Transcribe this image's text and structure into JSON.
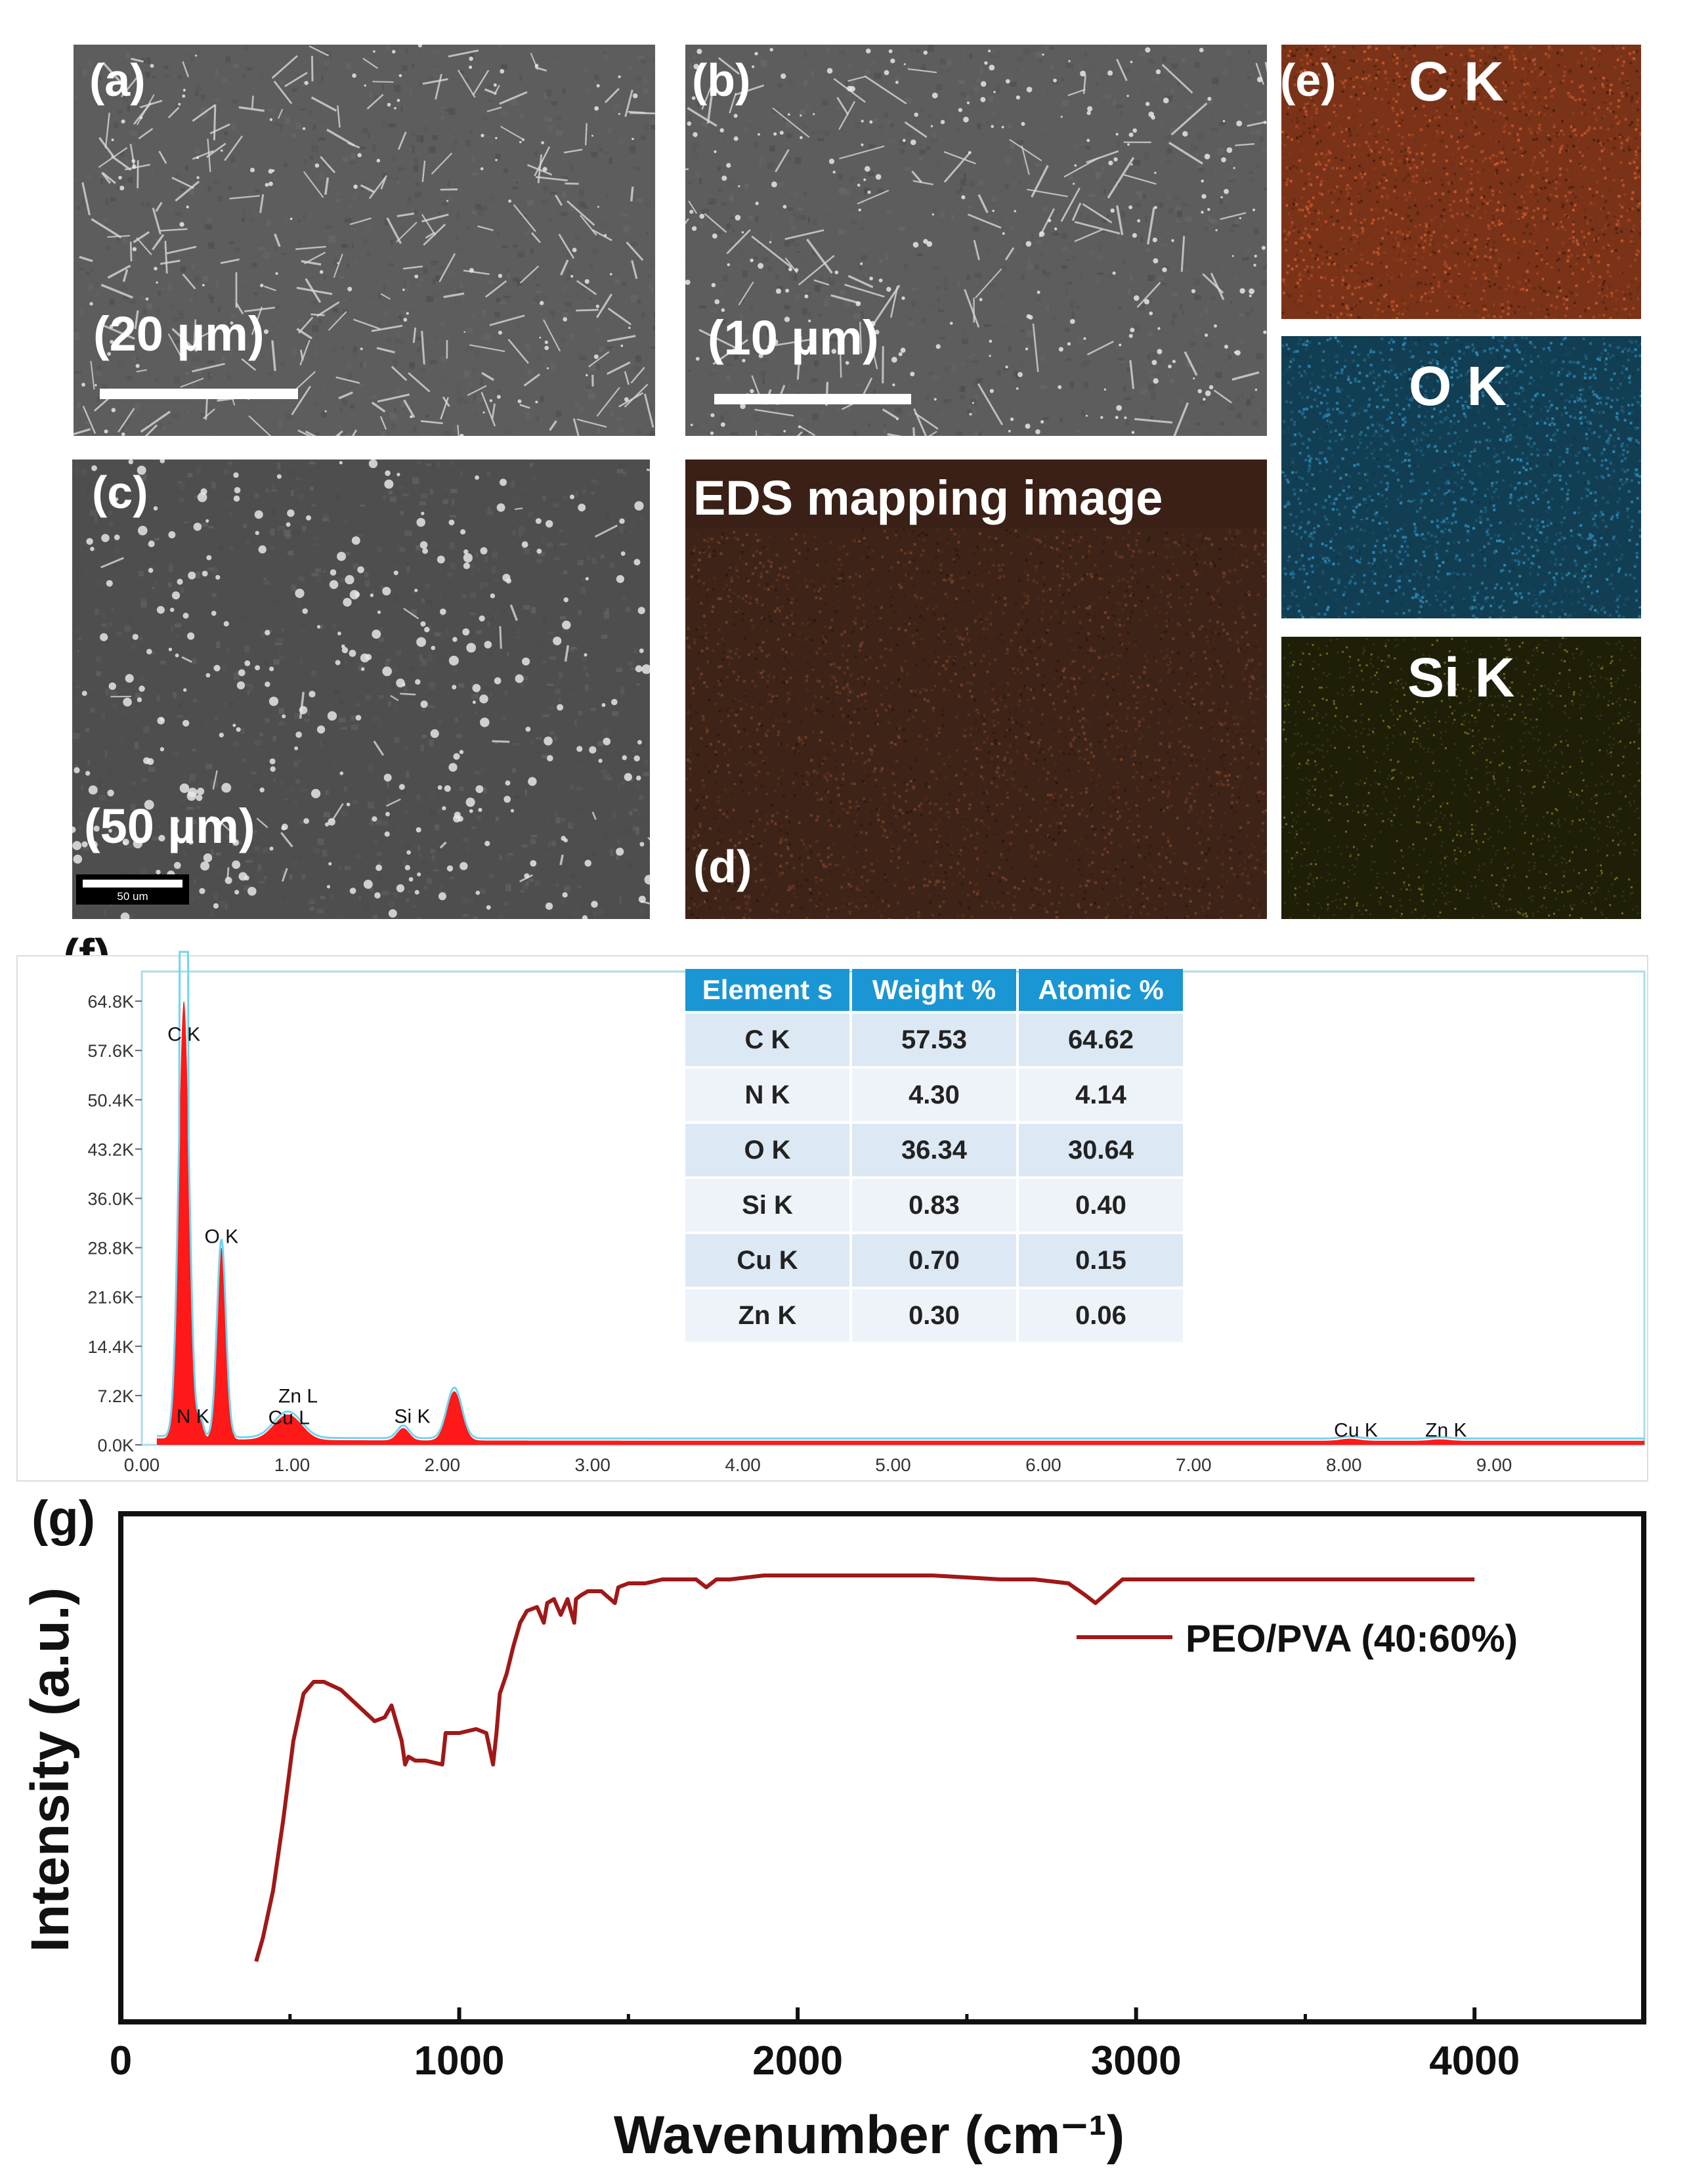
{
  "panels": {
    "a": {
      "label": "(a)",
      "scale": "(20 µm)"
    },
    "b": {
      "label": "(b)",
      "scale": "(10 µm)"
    },
    "c": {
      "label": "(c)",
      "scale": "(50 µm)",
      "bar_text": "50 um"
    },
    "d": {
      "label": "(d)",
      "title": "EDS mapping image"
    },
    "e": {
      "label": "(e)",
      "maps": [
        "C K",
        "O K",
        "Si K"
      ]
    },
    "f": {
      "label": "(f)"
    },
    "g": {
      "label": "(g)"
    }
  },
  "colors": {
    "c_map": "#7a3318",
    "o_map": "#123e54",
    "si_map": "#1f1f08",
    "eds_map": "#3e2418",
    "spectrum_fill": "#ff0000",
    "spectrum_line": "#6fd6f0",
    "ftir_line": "#a01818",
    "table_header": "#1a96d4"
  },
  "composition_table": {
    "headers": [
      "Element s",
      "Weight %",
      "Atomic %"
    ],
    "rows": [
      [
        "C K",
        "57.53",
        "64.62"
      ],
      [
        "N K",
        "4.30",
        "4.14"
      ],
      [
        "O K",
        "36.34",
        "30.64"
      ],
      [
        "Si K",
        "0.83",
        "0.40"
      ],
      [
        "Cu K",
        "0.70",
        "0.15"
      ],
      [
        "Zn K",
        "0.30",
        "0.06"
      ]
    ]
  },
  "chart_data": [
    {
      "type": "area",
      "title": "",
      "xlabel": "",
      "ylabel": "",
      "xlim": [
        0,
        10
      ],
      "ylim": [
        0,
        72000
      ],
      "x_ticks": [
        "0.00",
        "1.00",
        "2.00",
        "3.00",
        "4.00",
        "5.00",
        "6.00",
        "7.00",
        "8.00",
        "9.00"
      ],
      "y_ticks": [
        "0.0K",
        "7.2K",
        "14.4K",
        "21.6K",
        "28.8K",
        "36.0K",
        "43.2K",
        "50.4K",
        "57.6K",
        "64.8K"
      ],
      "peaks": [
        {
          "label": "C K",
          "x": 0.28,
          "y": 64000
        },
        {
          "label": "N K",
          "x": 0.39,
          "y": 2500
        },
        {
          "label": "O K",
          "x": 0.53,
          "y": 28000
        },
        {
          "label": "Cu L",
          "x": 0.93,
          "y": 2000
        },
        {
          "label": "Zn L",
          "x": 1.01,
          "y": 2200
        },
        {
          "label": "Si K",
          "x": 1.74,
          "y": 1800
        },
        {
          "label": "",
          "x": 2.08,
          "y": 7200
        },
        {
          "label": "Cu K",
          "x": 8.04,
          "y": 300
        },
        {
          "label": "Zn K",
          "x": 8.64,
          "y": 200
        }
      ]
    },
    {
      "type": "line",
      "title": "",
      "xlabel": "Wavenumber (cm⁻¹)",
      "ylabel": "Intensity (a.u.)",
      "xlim": [
        0,
        4500
      ],
      "x_ticks": [
        "0",
        "1000",
        "2000",
        "3000",
        "4000"
      ],
      "series": [
        {
          "name": "PEO/PVA (40:60%)",
          "x": [
            400,
            420,
            450,
            480,
            510,
            540,
            570,
            600,
            650,
            700,
            750,
            780,
            800,
            830,
            840,
            850,
            870,
            900,
            950,
            960,
            980,
            1000,
            1050,
            1080,
            1090,
            1100,
            1110,
            1120,
            1140,
            1160,
            1180,
            1200,
            1230,
            1250,
            1260,
            1280,
            1300,
            1320,
            1340,
            1345,
            1360,
            1380,
            1420,
            1460,
            1470,
            1500,
            1550,
            1600,
            1650,
            1700,
            1730,
            1760,
            1800,
            1900,
            2000,
            2200,
            2400,
            2600,
            2700,
            2800,
            2850,
            2880,
            2920,
            2960,
            3000,
            3200,
            3400,
            3600,
            3800,
            4000
          ],
          "y": [
            0.02,
            0.08,
            0.2,
            0.38,
            0.58,
            0.7,
            0.73,
            0.73,
            0.71,
            0.67,
            0.63,
            0.64,
            0.67,
            0.58,
            0.52,
            0.54,
            0.53,
            0.53,
            0.52,
            0.6,
            0.6,
            0.6,
            0.61,
            0.6,
            0.56,
            0.52,
            0.6,
            0.7,
            0.75,
            0.82,
            0.88,
            0.91,
            0.92,
            0.88,
            0.93,
            0.94,
            0.9,
            0.94,
            0.88,
            0.94,
            0.95,
            0.96,
            0.96,
            0.93,
            0.97,
            0.98,
            0.98,
            0.99,
            0.99,
            0.99,
            0.97,
            0.99,
            0.99,
            1.0,
            1.0,
            1.0,
            1.0,
            0.99,
            0.99,
            0.98,
            0.95,
            0.93,
            0.96,
            0.99,
            0.99,
            0.99,
            0.99,
            0.99,
            0.99,
            0.99
          ]
        }
      ]
    }
  ]
}
